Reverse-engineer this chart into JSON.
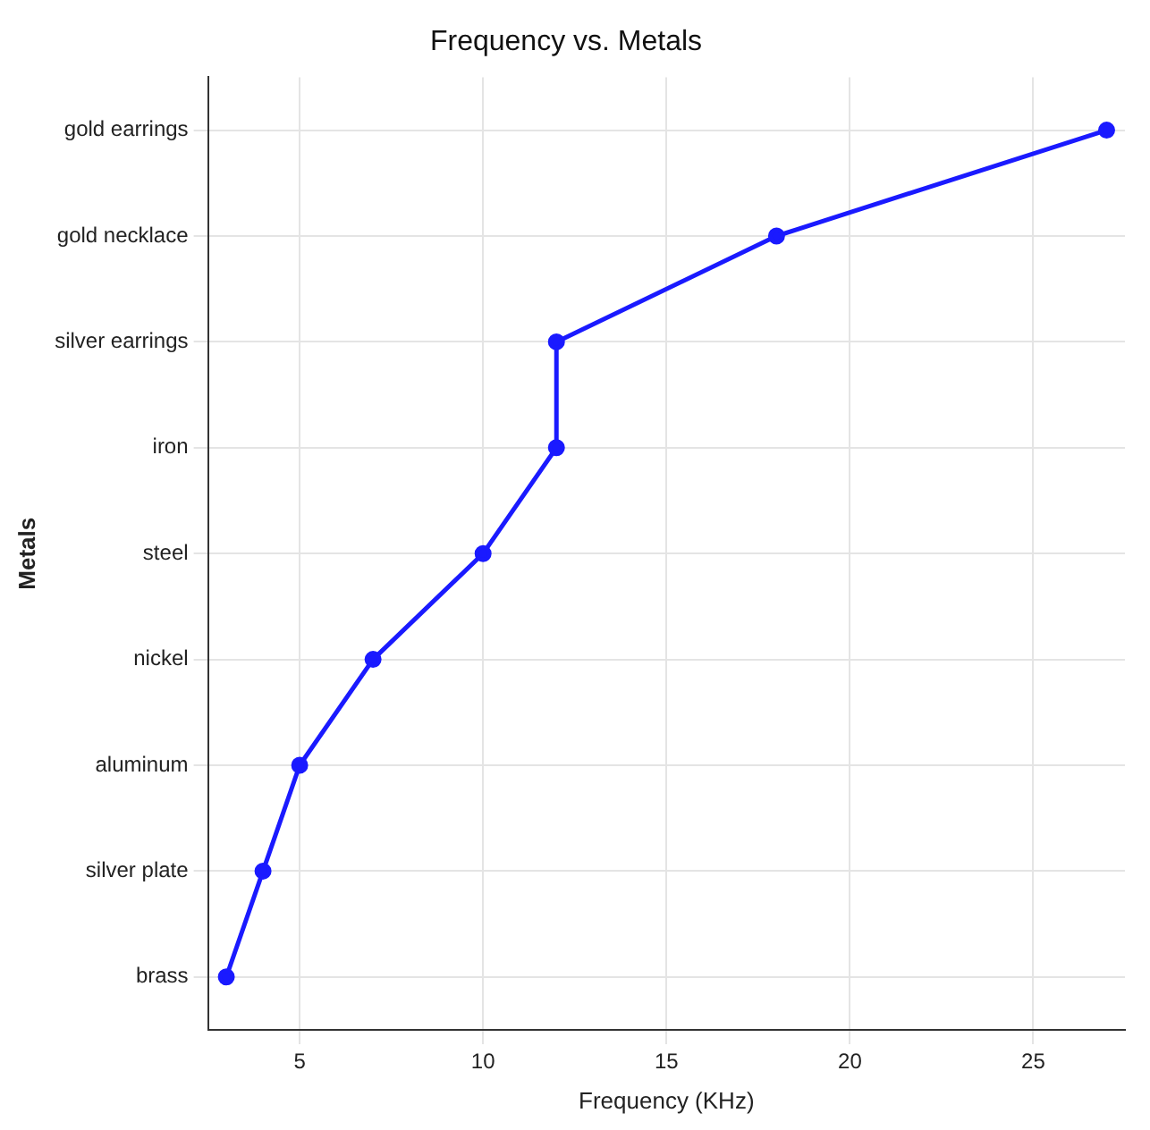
{
  "chart_data": {
    "type": "line",
    "orientation": "horizontal",
    "title": "Frequency vs. Metals",
    "xlabel": "Frequency (KHz)",
    "ylabel": "Metals",
    "categories": [
      "gold earrings",
      "gold necklace",
      "silver earrings",
      "iron",
      "steel",
      "nickel",
      "aluminum",
      "silver plate",
      "brass"
    ],
    "series": [
      {
        "color": "#1a1aff",
        "values": [
          27,
          18,
          12,
          12,
          10,
          7,
          5,
          4,
          3
        ]
      }
    ],
    "xlim": [
      2.5,
      27.5
    ],
    "xticks": [
      5,
      10,
      15,
      20,
      25
    ],
    "grid": true,
    "marker": "circle",
    "line_style": "solid",
    "legend": false
  }
}
